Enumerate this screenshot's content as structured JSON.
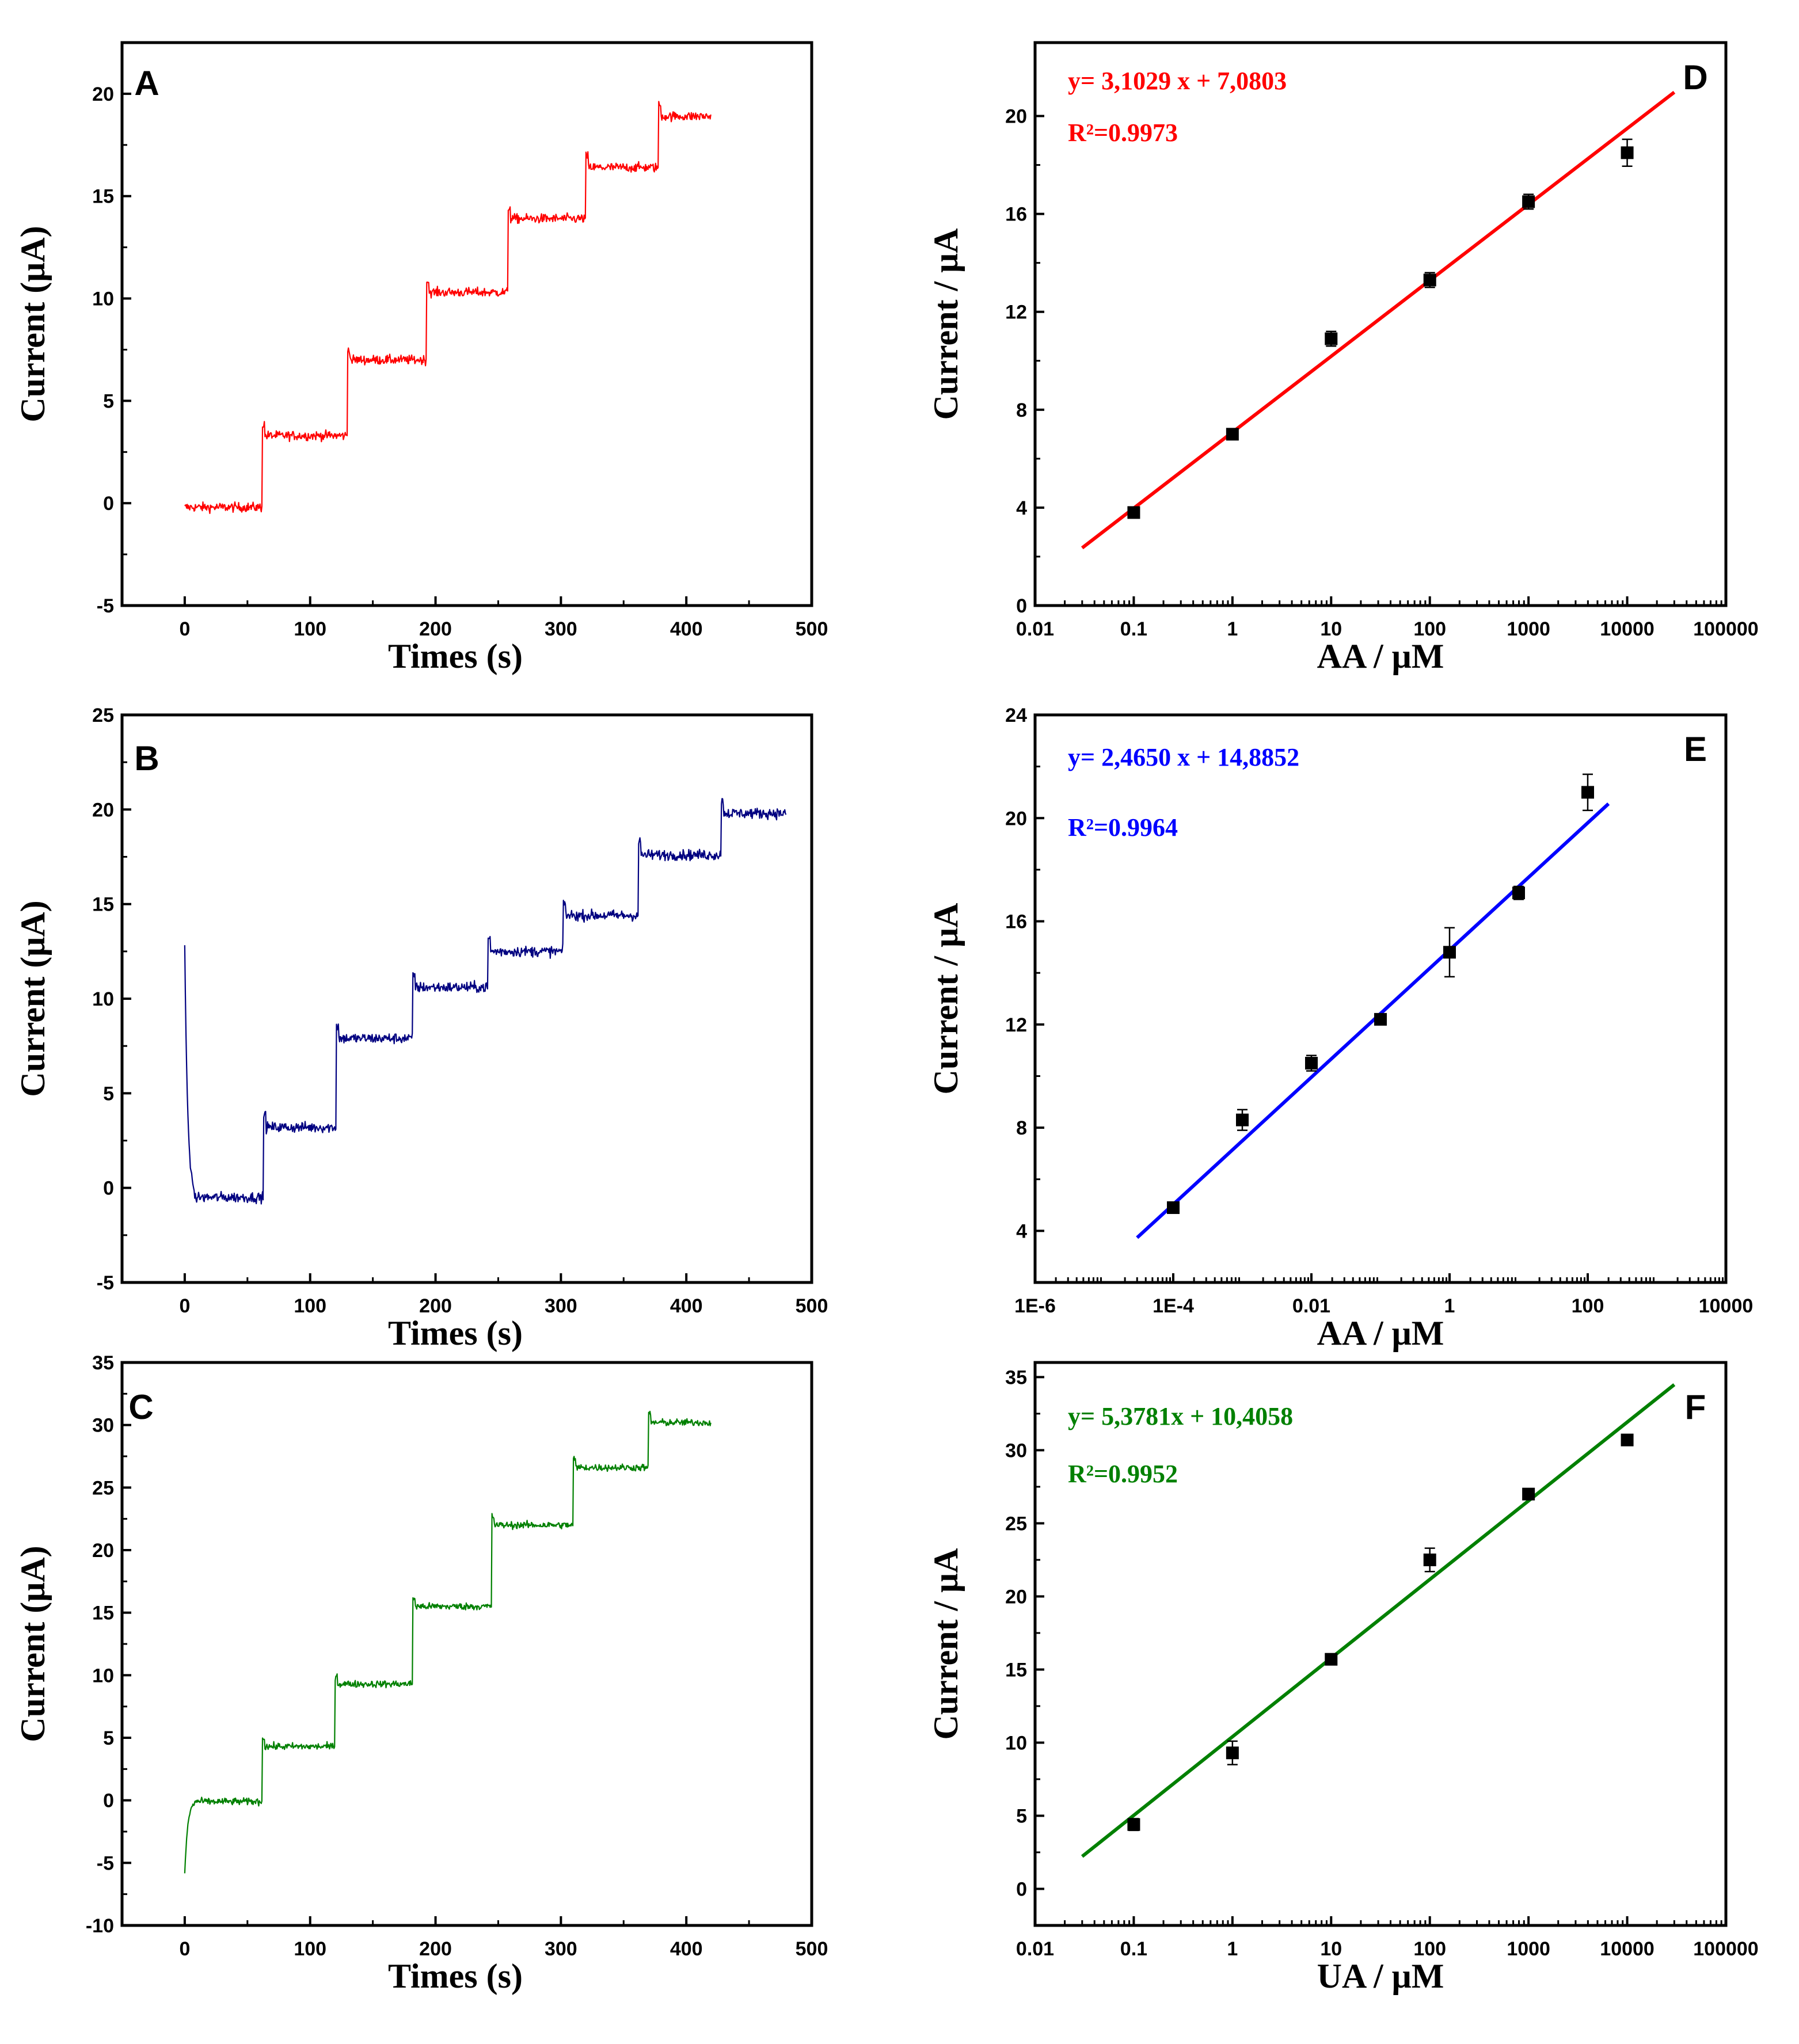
{
  "chart_data": [
    {
      "panel": "A",
      "type": "line",
      "xlabel": "Times (s)",
      "ylabel": "Current (μA)",
      "xlim": [
        -50,
        500
      ],
      "ylim": [
        -5,
        22.5
      ],
      "xticks": [
        0,
        100,
        200,
        300,
        400,
        500
      ],
      "yticks": [
        -5,
        0,
        5,
        10,
        15,
        20
      ],
      "color": "#ff0000",
      "steps": [
        {
          "t0": 0,
          "t1": 62,
          "level": -0.2
        },
        {
          "t0": 62,
          "t1": 130,
          "level": 3.3
        },
        {
          "t0": 130,
          "t1": 193,
          "level": 7.0
        },
        {
          "t0": 193,
          "t1": 258,
          "level": 10.3
        },
        {
          "t0": 258,
          "t1": 320,
          "level": 13.9
        },
        {
          "t0": 320,
          "t1": 378,
          "level": 16.4
        },
        {
          "t0": 378,
          "t1": 420,
          "level": 18.9
        }
      ],
      "noise": 0.45
    },
    {
      "panel": "B",
      "type": "line",
      "xlabel": "Times (s)",
      "ylabel": "Current (μA)",
      "xlim": [
        -50,
        500
      ],
      "ylim": [
        -5,
        25
      ],
      "xticks": [
        0,
        100,
        200,
        300,
        400,
        500
      ],
      "yticks": [
        -5,
        0,
        5,
        10,
        15,
        20,
        25
      ],
      "color": "#000080",
      "spike": {
        "t": 1,
        "peak": 13
      },
      "steps": [
        {
          "t0": 0,
          "t1": 63,
          "level": -0.5
        },
        {
          "t0": 63,
          "t1": 121,
          "level": 3.2
        },
        {
          "t0": 121,
          "t1": 182,
          "level": 7.9
        },
        {
          "t0": 182,
          "t1": 242,
          "level": 10.6
        },
        {
          "t0": 242,
          "t1": 302,
          "level": 12.5
        },
        {
          "t0": 302,
          "t1": 362,
          "level": 14.4
        },
        {
          "t0": 362,
          "t1": 428,
          "level": 17.6
        },
        {
          "t0": 428,
          "t1": 480,
          "level": 19.8
        }
      ],
      "noise": 0.55
    },
    {
      "panel": "C",
      "type": "line",
      "xlabel": "Times (s)",
      "ylabel": "Current (μA)",
      "xlim": [
        -50,
        500
      ],
      "ylim": [
        -10,
        35
      ],
      "xticks": [
        0,
        100,
        200,
        300,
        400,
        500
      ],
      "yticks": [
        -10,
        -5,
        0,
        5,
        10,
        15,
        20,
        25,
        30,
        35
      ],
      "color": "#008000",
      "spike": {
        "t": 1,
        "peak": -6
      },
      "steps": [
        {
          "t0": 0,
          "t1": 62,
          "level": -0.1
        },
        {
          "t0": 62,
          "t1": 120,
          "level": 4.3
        },
        {
          "t0": 120,
          "t1": 182,
          "level": 9.3
        },
        {
          "t0": 182,
          "t1": 245,
          "level": 15.5
        },
        {
          "t0": 245,
          "t1": 310,
          "level": 22.0
        },
        {
          "t0": 310,
          "t1": 370,
          "level": 26.6
        },
        {
          "t0": 370,
          "t1": 420,
          "level": 30.2
        }
      ],
      "noise": 0.55
    },
    {
      "panel": "D",
      "type": "scatter",
      "xscale": "log",
      "xlabel": "AA / μM",
      "ylabel": "Current / μA",
      "xlim_exp": [
        -2,
        5
      ],
      "ylim": [
        0,
        23
      ],
      "xticks": [
        0.01,
        0.1,
        1,
        10,
        100,
        1000,
        10000,
        100000
      ],
      "xtick_labels": [
        "0.01",
        "0.1",
        "1",
        "10",
        "100",
        "1000",
        "10000",
        "100000"
      ],
      "yticks": [
        0,
        4,
        8,
        12,
        16,
        20
      ],
      "points": [
        {
          "x": 0.1,
          "y": 3.8,
          "err": 0.15
        },
        {
          "x": 1,
          "y": 7.0,
          "err": 0.15
        },
        {
          "x": 10,
          "y": 10.9,
          "err": 0.3
        },
        {
          "x": 100,
          "y": 13.3,
          "err": 0.3
        },
        {
          "x": 1000,
          "y": 16.5,
          "err": 0.3
        },
        {
          "x": 10000,
          "y": 18.5,
          "err": 0.55
        }
      ],
      "fit": {
        "slope": 3.1029,
        "intercept": 7.0803,
        "x_range": [
          0.03,
          30000
        ],
        "color": "#ff0000"
      },
      "equation": "y= 3,1029 x + 7,0803",
      "r2": "R²=0.9973"
    },
    {
      "panel": "E",
      "type": "scatter",
      "xscale": "log",
      "xlabel": "AA / μM",
      "ylabel": "Current / μA",
      "xlim_exp": [
        -6,
        4
      ],
      "ylim": [
        2,
        24
      ],
      "xticks": [
        1e-06,
        0.0001,
        0.01,
        1,
        100,
        10000
      ],
      "xtick_labels": [
        "1E-6",
        "1E-4",
        "0.01",
        "1",
        "100",
        "10000"
      ],
      "yticks": [
        4,
        8,
        12,
        16,
        20,
        24
      ],
      "points": [
        {
          "x": 0.0001,
          "y": 4.9,
          "err": 0.15
        },
        {
          "x": 0.001,
          "y": 8.3,
          "err": 0.4
        },
        {
          "x": 0.01,
          "y": 10.5,
          "err": 0.3
        },
        {
          "x": 0.1,
          "y": 12.2,
          "err": 0.2
        },
        {
          "x": 1,
          "y": 14.8,
          "err": 0.95
        },
        {
          "x": 10,
          "y": 17.1,
          "err": 0.25
        },
        {
          "x": 100,
          "y": 21.0,
          "err": 0.7
        }
      ],
      "fit": {
        "slope": 2.465,
        "intercept": 14.8852,
        "x_range": [
          3e-05,
          200
        ],
        "color": "#0000ff"
      },
      "equation": "y= 2,4650 x + 14,8852",
      "r2": "R²=0.9964"
    },
    {
      "panel": "F",
      "type": "scatter",
      "xscale": "log",
      "xlabel": "UA / μM",
      "ylabel": "Current / μA",
      "xlim_exp": [
        -2,
        5
      ],
      "ylim": [
        -2.5,
        36
      ],
      "xticks": [
        0.01,
        0.1,
        1,
        10,
        100,
        1000,
        10000,
        100000
      ],
      "xtick_labels": [
        "0.01",
        "0.1",
        "1",
        "10",
        "100",
        "1000",
        "10000",
        "100000"
      ],
      "yticks": [
        0,
        5,
        10,
        15,
        20,
        25,
        30,
        35
      ],
      "points": [
        {
          "x": 0.1,
          "y": 4.4,
          "err": 0.4
        },
        {
          "x": 1,
          "y": 9.3,
          "err": 0.8
        },
        {
          "x": 10,
          "y": 15.7,
          "err": 0.3
        },
        {
          "x": 100,
          "y": 22.5,
          "err": 0.8
        },
        {
          "x": 1000,
          "y": 27.0,
          "err": 0.3
        },
        {
          "x": 10000,
          "y": 30.7,
          "err": 0.3
        }
      ],
      "fit": {
        "slope": 5.3781,
        "intercept": 10.4058,
        "x_range": [
          0.03,
          30000
        ],
        "color": "#008000"
      },
      "equation": "y= 5,3781x + 10,4058",
      "r2": "R²=0.9952"
    }
  ]
}
